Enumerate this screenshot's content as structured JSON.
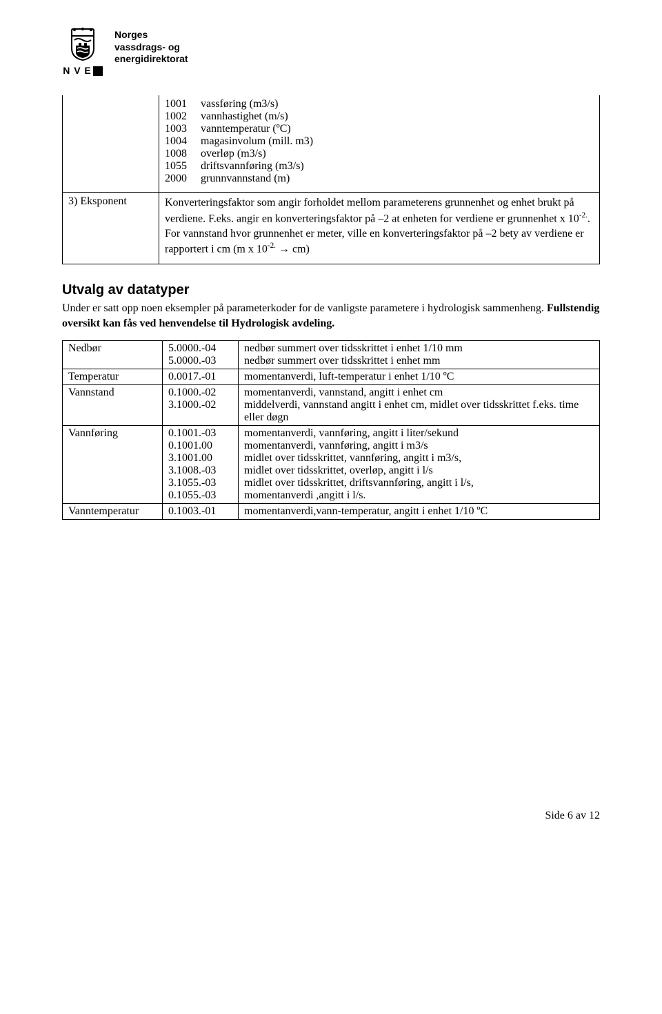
{
  "header": {
    "org_line1": "Norges",
    "org_line2": "vassdrags- og",
    "org_line3": "energidirektorat",
    "nve": "N V E"
  },
  "table1": {
    "params": [
      {
        "code": "1001",
        "desc": "vassføring (m3/s)"
      },
      {
        "code": "1002",
        "desc": "vannhastighet (m/s)"
      },
      {
        "code": "1003",
        "desc": "vanntemperatur (ºC)"
      },
      {
        "code": "1004",
        "desc": "magasinvolum (mill. m3)"
      },
      {
        "code": "1008",
        "desc": "overløp (m3/s)"
      },
      {
        "code": "1055",
        "desc": "driftsvannføring (m3/s)"
      },
      {
        "code": "2000",
        "desc": "grunnvannstand (m)"
      }
    ],
    "eksponent_label": "3) Eksponent",
    "eksponent_text_1": "Konverteringsfaktor som angir forholdet mellom  parameterens grunnenhet og enhet brukt på verdiene. F.eks. angir en konverteringsfaktor på –2 at enheten for verdiene er grunnenhet x 10",
    "eksponent_sup1": "-2.",
    "eksponent_text_2": ". For vannstand hvor grunnenhet er meter, ville en konverteringsfaktor på –2 bety av verdiene er rapportert i cm (m x 10",
    "eksponent_sup2": "-2.",
    "eksponent_text_3": " → cm)"
  },
  "section": {
    "heading": "Utvalg av datatyper",
    "para_1": "Under er satt opp noen eksempler på parameterkoder for de vanligste parametere i hydrologisk sammenheng. ",
    "para_bold": "Fullstendig oversikt kan fås ved henvendelse til Hydrologisk avdeling."
  },
  "table2": {
    "rows": [
      {
        "category": "Nedbør",
        "items": [
          {
            "code": "5.0000.-04",
            "desc": "nedbør summert over tidsskrittet i enhet 1/10 mm"
          },
          {
            "code": "5.0000.-03",
            "desc": "nedbør summert over tidsskrittet i enhet  mm"
          }
        ]
      },
      {
        "category": "Temperatur",
        "items": [
          {
            "code": "0.0017.-01",
            "desc": "momentanverdi, luft-temperatur i enhet 1/10 ºC"
          }
        ]
      },
      {
        "category": "Vannstand",
        "items": [
          {
            "code": "0.1000.-02",
            "desc": "momentanverdi, vannstand, angitt i enhet cm"
          },
          {
            "code": "3.1000.-02",
            "desc": "middelverdi, vannstand angitt i enhet cm, midlet over tidsskrittet f.eks. time eller døgn"
          }
        ]
      },
      {
        "category": "Vannføring",
        "items": [
          {
            "code": "0.1001.-03",
            "desc": "momentanverdi, vannføring, angitt i liter/sekund"
          },
          {
            "code": "0.1001.00",
            "desc": "momentanverdi, vannføring, angitt i m3/s"
          },
          {
            "code": "3.1001.00",
            "desc": "midlet over tidsskrittet, vannføring, angitt i m3/s,"
          },
          {
            "code": "3.1008.-03",
            "desc": "midlet over tidsskrittet, overløp, angitt i l/s"
          },
          {
            "code": "3.1055.-03",
            "desc": "midlet over tidsskrittet, driftsvannføring, angitt i l/s,"
          },
          {
            "code": "0.1055.-03",
            "desc": "momentanverdi ,angitt i l/s."
          }
        ]
      },
      {
        "category": "Vanntemperatur",
        "items": [
          {
            "code": "0.1003.-01",
            "desc": "momentanverdi,vann-temperatur, angitt i enhet 1/10 ºC"
          }
        ]
      }
    ]
  },
  "footer": {
    "page": "Side 6 av 12"
  }
}
